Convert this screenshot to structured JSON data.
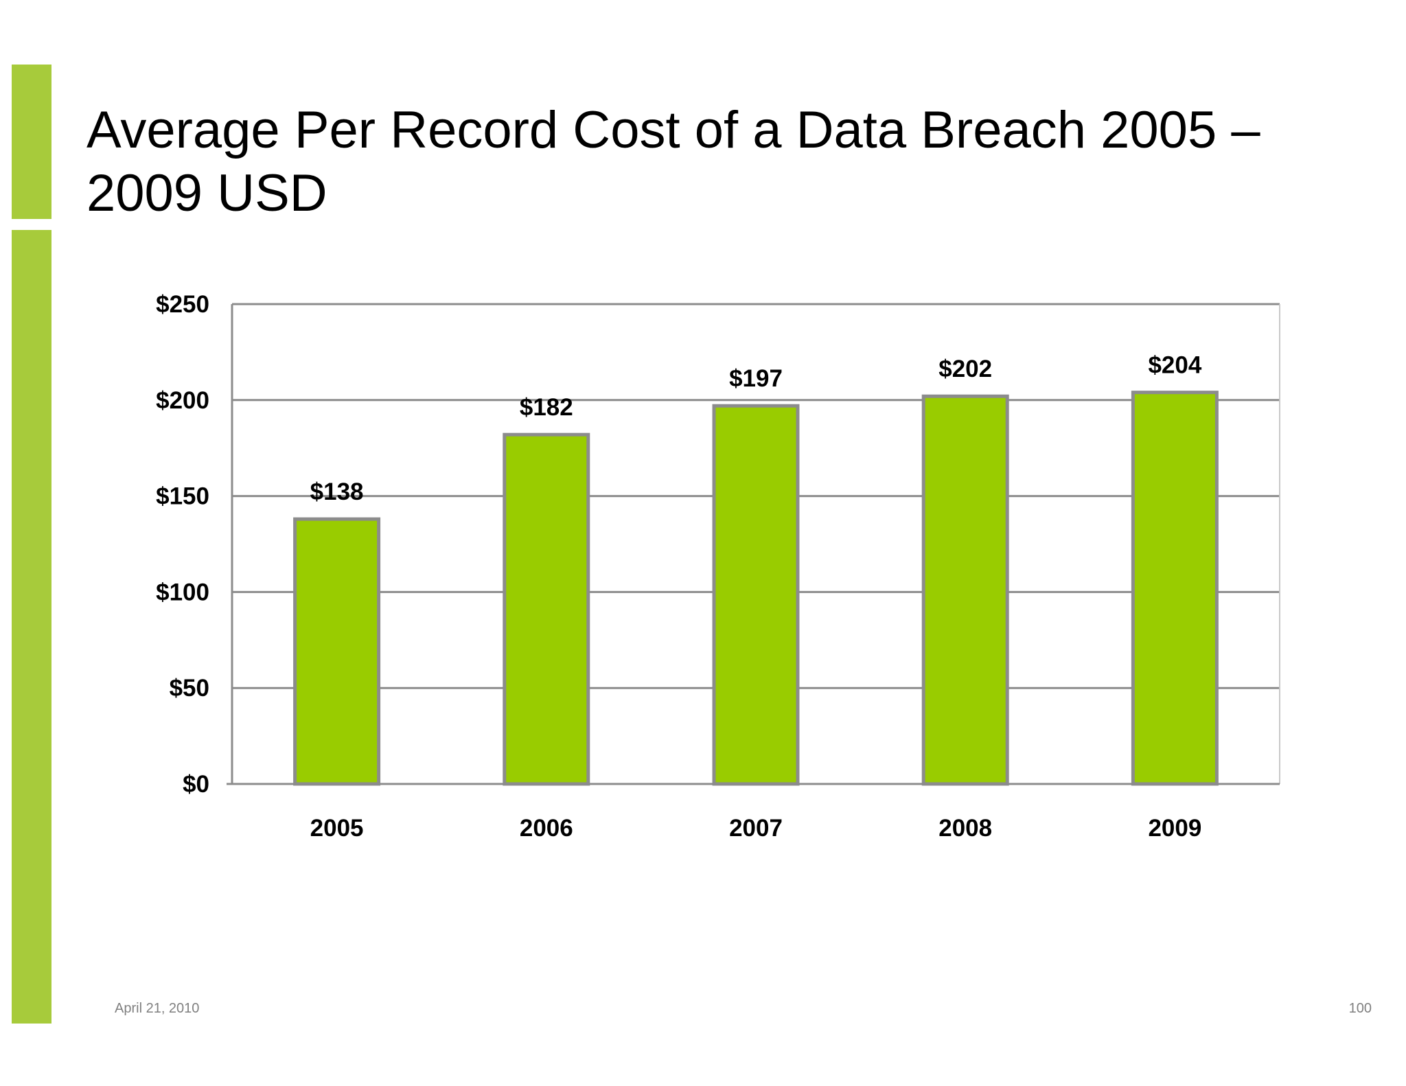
{
  "slide": {
    "title": "Average Per Record Cost of a Data Breach 2005 – 2009 USD",
    "footer_date": "April 21, 2010",
    "page_number": "100",
    "accent_color": "#a7cb3b"
  },
  "chart_data": {
    "type": "bar",
    "title": "",
    "categories": [
      "2005",
      "2006",
      "2007",
      "2008",
      "2009"
    ],
    "values": [
      138,
      182,
      197,
      202,
      204
    ],
    "data_labels": [
      "$138",
      "$182",
      "$197",
      "$202",
      "$204"
    ],
    "y_ticks": [
      0,
      50,
      100,
      150,
      200,
      250
    ],
    "y_tick_labels": [
      "$0",
      "$50",
      "$100",
      "$150",
      "$200",
      "$250"
    ],
    "ylim": [
      0,
      250
    ],
    "xlabel": "",
    "ylabel": "",
    "grid": true,
    "legend": "none",
    "bar_color": "#99cc00",
    "bar_border_color": "#8c8c8c",
    "grid_color": "#8c8c8c"
  }
}
